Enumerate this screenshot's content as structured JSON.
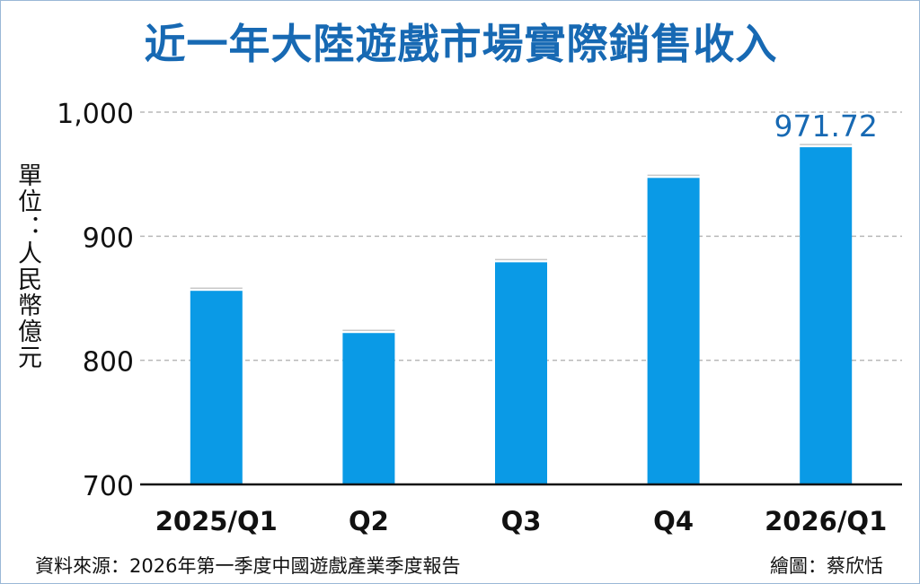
{
  "chart_data": {
    "type": "bar",
    "title": "近一年大陸遊戲市場實際銷售收入",
    "ylabel": "單位：人民幣億元",
    "categories": [
      "2025/Q1",
      "Q2",
      "Q3",
      "Q4",
      "2026/Q1"
    ],
    "values": [
      856,
      822,
      879,
      947,
      971.72
    ],
    "ylim": [
      700,
      1000
    ],
    "yticks": [
      "700",
      "800",
      "900",
      "1,000"
    ],
    "ytick_values": [
      700,
      800,
      900,
      1000
    ],
    "annotations": [
      {
        "category": "2026/Q1",
        "text": "971.72"
      }
    ],
    "grid": "horizontal-dashed",
    "colors": {
      "bar": "#0a9ae6",
      "title": "#1769b3",
      "annotation": "#1769b3",
      "grid": "#b8b8b8"
    }
  },
  "footer": {
    "source": "資料來源：2026年第一季度中國遊戲產業季度報告",
    "credit": "繪圖：蔡欣恬"
  }
}
